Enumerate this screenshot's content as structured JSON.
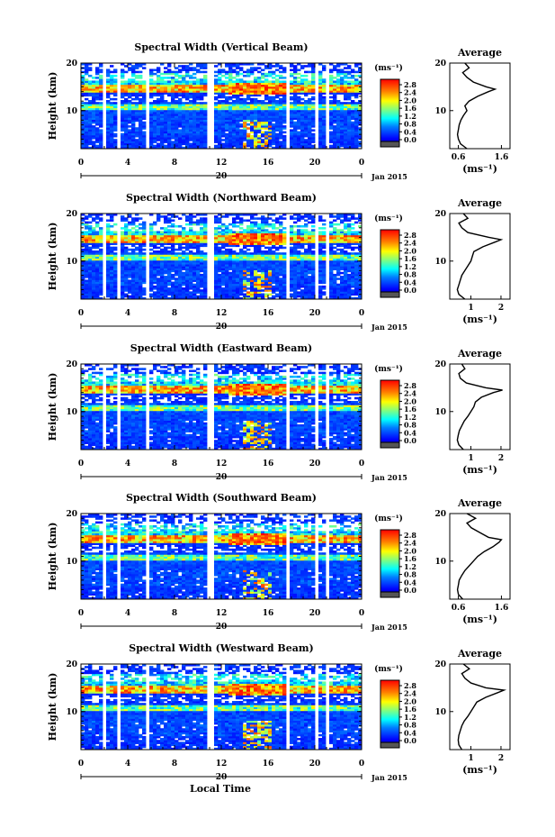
{
  "chart_data": [
    {
      "type": "heatmap",
      "title": "Spectral Width (Vertical Beam)",
      "ylabel": "Height (km)",
      "xlabel": "Local Time",
      "x_ticks": [
        "0",
        "4",
        "8",
        "12",
        "16",
        "20",
        "0"
      ],
      "y_ticks": [
        "20",
        "10"
      ],
      "ylim": [
        2,
        20
      ],
      "date_center": "20",
      "date_label": "Jan 2015",
      "colorbar": {
        "unit": "(ms⁻¹)",
        "ticks": [
          "2.8",
          "2.4",
          "2.0",
          "1.6",
          "1.2",
          "0.8",
          "0.4",
          "0.0"
        ],
        "range": [
          0.0,
          3.0
        ]
      },
      "average": {
        "title": "Average",
        "xlabel": "(ms⁻¹)",
        "x_ticks": [
          "0.6",
          "1.6"
        ],
        "xlim": [
          0.4,
          1.8
        ],
        "y_ticks": [
          "20",
          "10"
        ],
        "heights": [
          2,
          3,
          4,
          5,
          6,
          7,
          8,
          9,
          10,
          11,
          12,
          13,
          14,
          14.5,
          15,
          16,
          17,
          18,
          19,
          20
        ],
        "values": [
          0.8,
          0.65,
          0.6,
          0.58,
          0.6,
          0.62,
          0.66,
          0.72,
          0.8,
          0.75,
          0.85,
          1.05,
          1.3,
          1.45,
          1.25,
          0.95,
          0.8,
          0.7,
          0.85,
          0.75
        ]
      }
    },
    {
      "type": "heatmap",
      "title": "Spectral Width (Northward Beam)",
      "ylabel": "Height (km)",
      "x_ticks": [
        "0",
        "4",
        "8",
        "12",
        "16",
        "20",
        "0"
      ],
      "y_ticks": [
        "20",
        "10"
      ],
      "ylim": [
        2,
        20
      ],
      "date_center": "20",
      "date_label": "Jan 2015",
      "colorbar": {
        "unit": "(ms⁻¹)",
        "ticks": [
          "2.8",
          "2.4",
          "2.0",
          "1.6",
          "1.2",
          "0.8",
          "0.4",
          "0.0"
        ],
        "range": [
          0.0,
          3.0
        ]
      },
      "average": {
        "title": "Average",
        "xlabel": "(ms⁻¹)",
        "x_ticks": [
          "1",
          "2"
        ],
        "xlim": [
          0.3,
          2.3
        ],
        "y_ticks": [
          "20",
          "10"
        ],
        "heights": [
          2,
          3,
          4,
          5,
          6,
          7,
          8,
          9,
          10,
          11,
          12,
          13,
          14,
          14.5,
          15,
          16,
          17,
          18,
          19,
          20
        ],
        "values": [
          0.8,
          0.6,
          0.55,
          0.6,
          0.65,
          0.7,
          0.8,
          0.9,
          1.0,
          1.05,
          1.1,
          1.4,
          1.8,
          2.0,
          1.6,
          0.9,
          0.7,
          0.6,
          0.9,
          0.75
        ]
      }
    },
    {
      "type": "heatmap",
      "title": "Spectral Width (Eastward Beam)",
      "ylabel": "Height (km)",
      "x_ticks": [
        "0",
        "4",
        "8",
        "12",
        "16",
        "20",
        "0"
      ],
      "y_ticks": [
        "20",
        "10"
      ],
      "ylim": [
        2,
        20
      ],
      "date_center": "20",
      "date_label": "Jan 2015",
      "colorbar": {
        "unit": "(ms⁻¹)",
        "ticks": [
          "2.8",
          "2.4",
          "2.0",
          "1.6",
          "1.2",
          "0.8",
          "0.4",
          "0.0"
        ],
        "range": [
          0.0,
          3.0
        ]
      },
      "average": {
        "title": "Average",
        "xlabel": "(ms⁻¹)",
        "x_ticks": [
          "1",
          "2"
        ],
        "xlim": [
          0.3,
          2.3
        ],
        "y_ticks": [
          "20",
          "10"
        ],
        "heights": [
          2,
          3,
          4,
          5,
          6,
          7,
          8,
          9,
          10,
          11,
          12,
          13,
          14,
          14.5,
          15,
          16,
          17,
          18,
          19,
          20
        ],
        "values": [
          0.75,
          0.6,
          0.55,
          0.58,
          0.62,
          0.7,
          0.78,
          0.9,
          1.0,
          1.1,
          1.15,
          1.35,
          1.75,
          2.05,
          1.5,
          0.85,
          0.65,
          0.6,
          0.8,
          0.7
        ]
      }
    },
    {
      "type": "heatmap",
      "title": "Spectral Width (Southward Beam)",
      "ylabel": "Height (km)",
      "x_ticks": [
        "0",
        "4",
        "8",
        "12",
        "16",
        "20",
        "0"
      ],
      "y_ticks": [
        "20",
        "10"
      ],
      "ylim": [
        2,
        20
      ],
      "date_center": "20",
      "date_label": "Jan 2015",
      "colorbar": {
        "unit": "(ms⁻¹)",
        "ticks": [
          "2.8",
          "2.4",
          "2.0",
          "1.6",
          "1.2",
          "0.8",
          "0.4",
          "0.0"
        ],
        "range": [
          0.0,
          3.0
        ]
      },
      "average": {
        "title": "Average",
        "xlabel": "(ms⁻¹)",
        "x_ticks": [
          "0.6",
          "1.6"
        ],
        "xlim": [
          0.4,
          1.8
        ],
        "y_ticks": [
          "20",
          "10"
        ],
        "heights": [
          2,
          3,
          4,
          5,
          6,
          7,
          8,
          9,
          10,
          11,
          12,
          13,
          14,
          14.5,
          15,
          16,
          17,
          18,
          19,
          20
        ],
        "values": [
          0.7,
          0.6,
          0.58,
          0.6,
          0.62,
          0.68,
          0.75,
          0.85,
          0.95,
          1.05,
          1.2,
          1.4,
          1.55,
          1.6,
          1.3,
          1.1,
          0.9,
          0.8,
          1.0,
          0.8
        ]
      }
    },
    {
      "type": "heatmap",
      "title": "Spectral Width (Westward Beam)",
      "ylabel": "Height (km)",
      "xlabel": "Local Time",
      "x_ticks": [
        "0",
        "4",
        "8",
        "12",
        "16",
        "20",
        "0"
      ],
      "y_ticks": [
        "20",
        "10"
      ],
      "ylim": [
        2,
        20
      ],
      "date_center": "20",
      "date_label": "Jan 2015",
      "colorbar": {
        "unit": "(ms⁻¹)",
        "ticks": [
          "2.8",
          "2.4",
          "2.0",
          "1.6",
          "1.2",
          "0.8",
          "0.4",
          "0.0"
        ],
        "range": [
          0.0,
          3.0
        ]
      },
      "average": {
        "title": "Average",
        "xlabel": "(ms⁻¹)",
        "x_ticks": [
          "1",
          "2"
        ],
        "xlim": [
          0.3,
          2.3
        ],
        "y_ticks": [
          "20",
          "10"
        ],
        "heights": [
          2,
          3,
          4,
          5,
          6,
          7,
          8,
          9,
          10,
          11,
          12,
          13,
          14,
          14.5,
          15,
          16,
          17,
          18,
          19,
          20
        ],
        "values": [
          0.7,
          0.6,
          0.58,
          0.6,
          0.65,
          0.7,
          0.78,
          0.9,
          1.0,
          1.1,
          1.2,
          1.5,
          1.9,
          2.1,
          1.5,
          1.0,
          0.8,
          0.7,
          0.95,
          0.75
        ]
      }
    }
  ],
  "footer": {
    "xlabel": "Local Time"
  }
}
